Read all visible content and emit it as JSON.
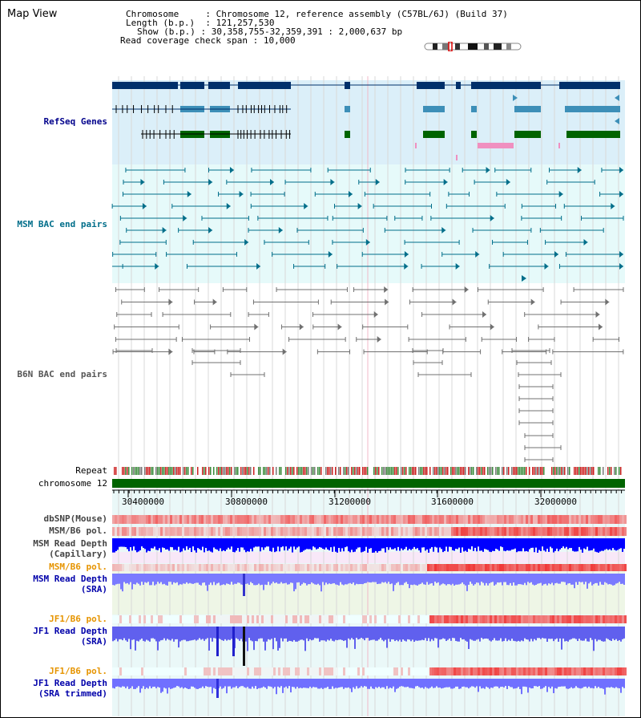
{
  "header": {
    "title": "Map View",
    "chromosome_key": "Chromosome",
    "chromosome_value": "Chromosome 12, reference assembly (C57BL/6J) (Build 37)",
    "length_key": "Length (b.p.)",
    "length_value": "121,257,530",
    "show_key": "Show (b.p.)",
    "show_value": "30,358,755-32,359,391 : 2,000,637 bp",
    "coverage_key": "Read coverage check span",
    "coverage_value": "10,000"
  },
  "tracks": {
    "refseq": "RefSeq Genes",
    "msm_bac": "MSM BAC end pairs",
    "b6n_bac": "B6N BAC end pairs",
    "repeat": "Repeat",
    "chromosome": "chromosome 12",
    "dbsnp": "dbSNP(Mouse)",
    "msm_b6_pol_1": "MSM/B6 pol.",
    "msm_depth_cap_1": "MSM Read Depth",
    "msm_depth_cap_2": "(Capillary)",
    "msm_b6_pol_2": "MSM/B6 pol.",
    "msm_depth_sra_1": "MSM Read Depth",
    "msm_depth_sra_2": "(SRA)",
    "jf1_b6_pol_1": "JF1/B6 pol.",
    "jf1_depth_sra_1": "JF1 Read Depth",
    "jf1_depth_sra_2": "(SRA)",
    "jf1_b6_pol_2": "JF1/B6 pol.",
    "jf1_depth_trim_1": "JF1 Read Depth",
    "jf1_depth_trim_2": "(SRA trimmed)"
  },
  "axis": {
    "ticks": [
      "30400000",
      "30800000",
      "31200000",
      "31600000",
      "32000000"
    ]
  },
  "colors": {
    "refseq_bg": "#dbeff9",
    "msm_bg": "#e6fafa",
    "chromosome_bar": "#006400",
    "gene_navy": "#00306b",
    "gene_blue": "#3d8fb8",
    "gene_green": "#006400",
    "bac_teal": "#006e8a",
    "bac_gray": "#707070",
    "depth_blue": "#0000ff",
    "depth_light": "#7a7aff",
    "pol_red": "#e03030"
  }
}
